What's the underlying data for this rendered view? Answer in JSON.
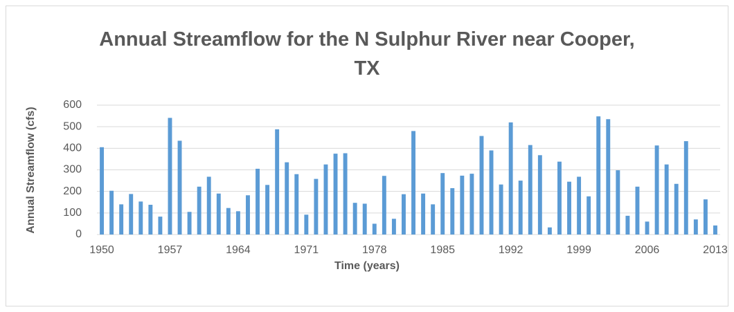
{
  "chart_data": {
    "type": "bar",
    "title": "Annual Streamflow for the N Sulphur River near Cooper, TX",
    "x_label": "Time (years)",
    "y_label": "Annual Streamflow (cfs)",
    "categories": [
      "1950",
      null,
      null,
      null,
      null,
      null,
      null,
      "1957",
      null,
      null,
      null,
      null,
      null,
      null,
      "1964",
      null,
      null,
      null,
      null,
      null,
      null,
      "1971",
      null,
      null,
      null,
      null,
      null,
      null,
      "1978",
      null,
      null,
      null,
      null,
      null,
      null,
      "1985",
      null,
      null,
      null,
      null,
      null,
      null,
      "1992",
      null,
      null,
      null,
      null,
      null,
      null,
      "1999",
      null,
      null,
      null,
      null,
      null,
      null,
      "2006",
      null,
      null,
      null,
      null,
      null,
      null,
      "2013"
    ],
    "values": [
      405,
      203,
      140,
      188,
      153,
      138,
      83,
      541,
      435,
      105,
      222,
      268,
      190,
      123,
      108,
      182,
      305,
      230,
      488,
      335,
      280,
      92,
      258,
      325,
      375,
      377,
      147,
      143,
      50,
      272,
      73,
      187,
      480,
      190,
      140,
      285,
      215,
      273,
      282,
      457,
      390,
      232,
      520,
      250,
      415,
      368,
      33,
      338,
      245,
      268,
      177,
      548,
      535,
      298,
      87,
      222,
      60,
      413,
      325,
      235,
      433,
      70,
      163,
      42
    ],
    "color": "#5b9bd5",
    "ylim": [
      0,
      600
    ],
    "yticks": [
      0,
      100,
      200,
      300,
      400,
      500,
      600
    ],
    "grid": true
  }
}
